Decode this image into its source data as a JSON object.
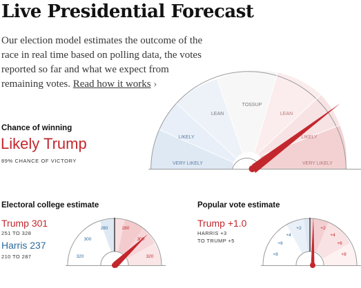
{
  "header": {
    "title": "Live Presidential Forecast",
    "intro": "Our election model estimates the outcome of the race in real time based on polling data, the votes reported so far and what we expect from remaining votes.",
    "link_text": "Read how it works",
    "link_chevron": "›"
  },
  "chance": {
    "label": "Chance of winning",
    "rating": "Likely Trump",
    "detail": "89% CHANCE OF VICTORY",
    "gauge_labels": {
      "left_likely": "LIKELY",
      "left_very_likely": "VERY LIKELY",
      "left_lean": "LEAN",
      "tossup": "TOSSUP",
      "right_lean": "LEAN",
      "right_likely": "LIKELY",
      "right_very_likely": "VERY LIKELY"
    },
    "needle_value": 0.89
  },
  "electoral": {
    "label": "Electoral college estimate",
    "trump": {
      "headline": "Trump 301",
      "range": "251 TO 328"
    },
    "harris": {
      "headline": "Harris 237",
      "range": "210 TO 287"
    },
    "ticks": {
      "d320": "320",
      "d300": "300",
      "d280": "280",
      "r280": "280",
      "r300": "300",
      "r320": "320"
    },
    "needle_value": 301
  },
  "popular": {
    "label": "Popular vote estimate",
    "headline": "Trump +1.0",
    "range_line1": "HARRIS +3",
    "range_line2": "TO TRUMP +5",
    "ticks": {
      "d8": "+8",
      "d6": "+6",
      "d4": "+4",
      "d2": "+2",
      "r2": "+2",
      "r4": "+4",
      "r6": "+6",
      "r8": "+8"
    },
    "needle_value": 1.0
  },
  "colors": {
    "republican": "#c2272d",
    "democrat": "#2a6a9c"
  }
}
